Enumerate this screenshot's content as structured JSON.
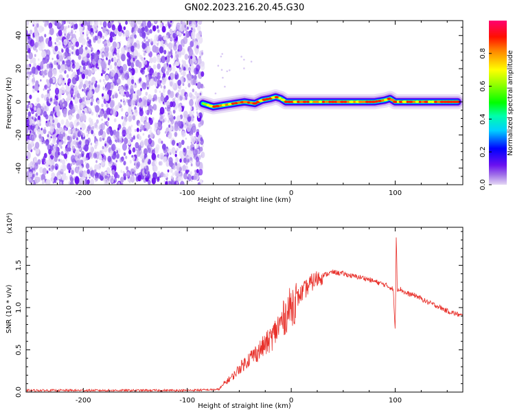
{
  "title": "GN02.2023.216.20.45.G30",
  "chart_data": [
    {
      "type": "heatmap",
      "xlabel": "Height of straight line (km)",
      "ylabel": "Frequency (Hz)",
      "xlim": [
        -255,
        165
      ],
      "ylim": [
        -50,
        49
      ],
      "xticks": [
        -200,
        -100,
        0,
        100
      ],
      "yticks": [
        -40,
        -20,
        0,
        20,
        40
      ],
      "noise_region_x": [
        -255,
        -85
      ],
      "signal_region_x": [
        -88,
        165
      ],
      "signal_center_hz": [
        {
          "x": -85,
          "y": -1
        },
        {
          "x": -75,
          "y": -3
        },
        {
          "x": -65,
          "y": -2
        },
        {
          "x": -55,
          "y": -1
        },
        {
          "x": -45,
          "y": 0
        },
        {
          "x": -35,
          "y": -1
        },
        {
          "x": -28,
          "y": 1
        },
        {
          "x": -20,
          "y": 2
        },
        {
          "x": -15,
          "y": 3
        },
        {
          "x": -10,
          "y": 2
        },
        {
          "x": -5,
          "y": 0
        },
        {
          "x": 0,
          "y": 0
        },
        {
          "x": 20,
          "y": 0
        },
        {
          "x": 40,
          "y": 0
        },
        {
          "x": 60,
          "y": 0
        },
        {
          "x": 80,
          "y": 0
        },
        {
          "x": 90,
          "y": 1
        },
        {
          "x": 95,
          "y": 2
        },
        {
          "x": 100,
          "y": 0
        },
        {
          "x": 120,
          "y": 0
        },
        {
          "x": 160,
          "y": 0
        }
      ],
      "grid": false
    },
    {
      "type": "colorbar",
      "label": "Normalized spectral amplitude",
      "range": [
        0.0,
        1.0
      ],
      "ticks": [
        "0.0",
        "0.2",
        "0.4",
        "0.6",
        "0.8"
      ],
      "tick_values": [
        0.0,
        0.2,
        0.4,
        0.6,
        0.8
      ]
    },
    {
      "type": "line",
      "xlabel": "Height of straight line (km)",
      "ylabel": "SNR (10 * v/v)",
      "yscale_label": "(x10⁴)",
      "xlim": [
        -255,
        165
      ],
      "ylim": [
        0,
        1.95
      ],
      "xticks": [
        -200,
        -100,
        0,
        100
      ],
      "yticks": [
        "0.0",
        "0.5",
        "1.0",
        "1.5"
      ],
      "ytick_values": [
        0.0,
        0.5,
        1.0,
        1.5
      ],
      "color": "#e8302a",
      "series": [
        {
          "x": [
            -255,
            -200,
            -150,
            -100,
            -70,
            -60,
            -55,
            -50,
            -40,
            -30,
            -20,
            -10,
            0,
            10,
            20,
            30,
            40,
            50,
            60,
            70,
            80,
            90,
            98,
            100,
            101,
            102,
            105,
            110,
            120,
            130,
            140,
            150,
            165
          ],
          "y": [
            0.02,
            0.02,
            0.02,
            0.02,
            0.03,
            0.15,
            0.2,
            0.28,
            0.4,
            0.5,
            0.62,
            0.82,
            1.02,
            1.17,
            1.3,
            1.38,
            1.42,
            1.4,
            1.37,
            1.35,
            1.31,
            1.27,
            1.22,
            0.7,
            1.9,
            1.22,
            1.22,
            1.17,
            1.14,
            1.07,
            1.02,
            0.96,
            0.9
          ]
        }
      ],
      "grid": false
    }
  ]
}
